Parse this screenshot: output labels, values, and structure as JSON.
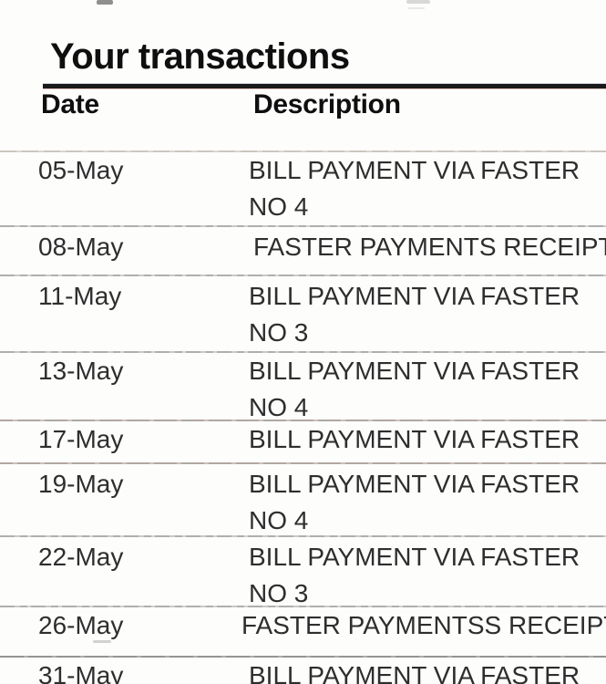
{
  "page": {
    "title": "Your transactions",
    "columns": {
      "date": "Date",
      "description": "Description"
    },
    "transactions": [
      {
        "date": "05-May",
        "description_lines": [
          "BILL PAYMENT VIA FASTER",
          "NO 4"
        ]
      },
      {
        "date": "08-May",
        "description_lines": [
          "FASTER PAYMENTS RECEIPT"
        ]
      },
      {
        "date": "11-May",
        "description_lines": [
          "BILL PAYMENT VIA FASTER",
          "NO 3"
        ]
      },
      {
        "date": "13-May",
        "description_lines": [
          "BILL PAYMENT VIA FASTER",
          "NO 4"
        ]
      },
      {
        "date": "17-May",
        "description_lines": [
          "BILL PAYMENT VIA FASTER"
        ]
      },
      {
        "date": "19-May",
        "description_lines": [
          "BILL PAYMENT VIA FASTER",
          "NO 4"
        ]
      },
      {
        "date": "22-May",
        "description_lines": [
          "BILL PAYMENT VIA FASTER",
          "NO 3"
        ]
      },
      {
        "date": "26-May",
        "description_lines": [
          "FASTER PAYMENTSS RECEIPT"
        ]
      },
      {
        "date": "31-May",
        "description_lines": [
          "BILL PAYMENT VIA FASTER"
        ]
      }
    ]
  },
  "colors": {
    "background": "#fdfdfc",
    "text": "#2e2e2e",
    "heading": "#0f0f0f",
    "title_rule": "#1a1a1a",
    "separator": "#ababab"
  }
}
